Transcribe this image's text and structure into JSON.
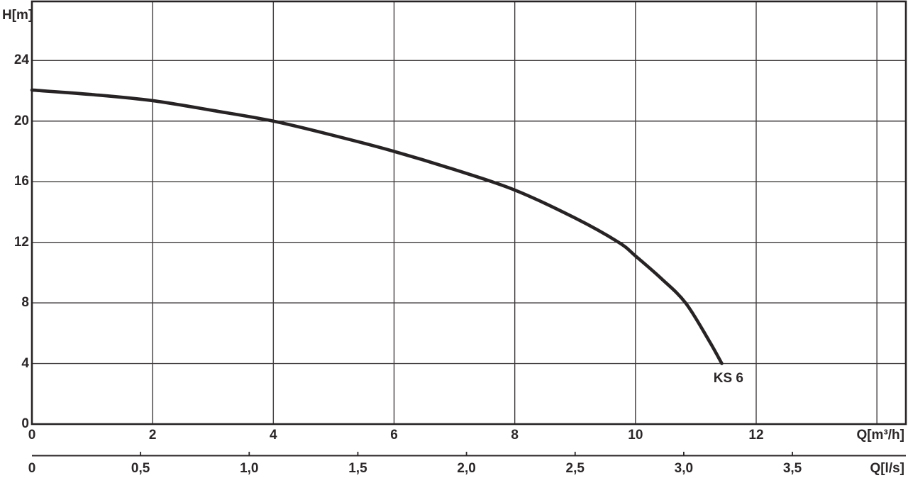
{
  "page": {
    "background": "#ffffff"
  },
  "chart_data": {
    "type": "line",
    "title": "",
    "grid": true,
    "legend": null,
    "colors": {
      "curve": "#272324",
      "border": "#272324",
      "grid": "#403c3d",
      "text": "#2b2728",
      "secondary_axis": "#2b2728"
    },
    "y_axis": {
      "label": "H[m]",
      "unit": "m",
      "ticks": [
        24,
        20,
        16,
        12,
        8,
        4,
        0
      ],
      "gridline_values": [
        24,
        20,
        16,
        12,
        8,
        4
      ],
      "range": [
        0,
        27.9
      ]
    },
    "x_axis_primary": {
      "label": "Q[m³/h]",
      "unit": "m³/h",
      "ticks": [
        0,
        2,
        4,
        6,
        8,
        10,
        12
      ],
      "gridline_values": [
        2,
        4,
        6,
        8,
        10,
        12,
        14
      ],
      "range": [
        0,
        14.48
      ]
    },
    "x_axis_secondary": {
      "label": "Q[l/s]",
      "unit": "l/s",
      "m3h_per_unit": 3.6,
      "ticks": [
        {
          "label": "0",
          "value": 0
        },
        {
          "label": "0,5",
          "value": 0.5
        },
        {
          "label": "1,0",
          "value": 1.0
        },
        {
          "label": "1,5",
          "value": 1.5
        },
        {
          "label": "2,0",
          "value": 2.0
        },
        {
          "label": "2,5",
          "value": 2.5
        },
        {
          "label": "3,0",
          "value": 3.0
        },
        {
          "label": "3,5",
          "value": 3.5
        }
      ],
      "tick_marked_values": [
        0.5,
        1.0,
        1.5,
        2.0,
        2.5,
        3.0,
        3.5
      ]
    },
    "series": [
      {
        "name": "KS 6",
        "label": "KS 6",
        "label_anchor_q": 11.54,
        "label_anchor_h": 3.0,
        "points": [
          [
            0,
            22.05
          ],
          [
            1,
            21.75
          ],
          [
            2,
            21.35
          ],
          [
            3,
            20.7
          ],
          [
            4,
            20.0
          ],
          [
            5,
            19.05
          ],
          [
            6,
            18.0
          ],
          [
            7,
            16.8
          ],
          [
            8,
            15.45
          ],
          [
            9,
            13.6
          ],
          [
            9.72,
            12.0
          ],
          [
            10,
            11.1
          ],
          [
            10.43,
            9.6
          ],
          [
            10.83,
            8.0
          ],
          [
            11.22,
            5.5
          ],
          [
            11.43,
            4.0
          ]
        ]
      }
    ]
  }
}
